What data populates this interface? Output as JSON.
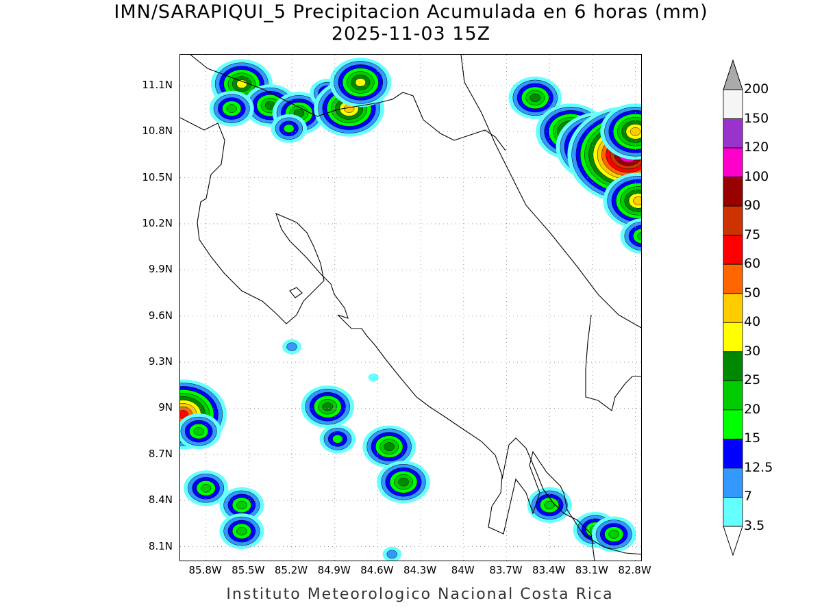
{
  "title": {
    "line1": "IMN/SARAPIQUI_5 Precipitacion Acumulada en 6 horas (mm)",
    "line2": "2025-11-03 15Z"
  },
  "footer": "Instituto Meteorologico Nacional Costa Rica",
  "map": {
    "lon_range": [
      -85.98,
      -82.75
    ],
    "lat_range": [
      8.0,
      11.3
    ],
    "grid": "dotted",
    "lat_ticks": [
      {
        "value": 11.1,
        "label": "11.1N"
      },
      {
        "value": 10.8,
        "label": "10.8N"
      },
      {
        "value": 10.5,
        "label": "10.5N"
      },
      {
        "value": 10.2,
        "label": "10.2N"
      },
      {
        "value": 9.9,
        "label": "9.9N"
      },
      {
        "value": 9.6,
        "label": "9.6N"
      },
      {
        "value": 9.3,
        "label": "9.3N"
      },
      {
        "value": 9.0,
        "label": "9N"
      },
      {
        "value": 8.7,
        "label": "8.7N"
      },
      {
        "value": 8.4,
        "label": "8.4N"
      },
      {
        "value": 8.1,
        "label": "8.1N"
      }
    ],
    "lon_ticks": [
      {
        "value": -85.8,
        "label": "85.8W"
      },
      {
        "value": -85.5,
        "label": "85.5W"
      },
      {
        "value": -85.2,
        "label": "85.2W"
      },
      {
        "value": -84.9,
        "label": "84.9W"
      },
      {
        "value": -84.6,
        "label": "84.6W"
      },
      {
        "value": -84.3,
        "label": "84.3W"
      },
      {
        "value": -84.0,
        "label": "84W"
      },
      {
        "value": -83.7,
        "label": "83.7W"
      },
      {
        "value": -83.4,
        "label": "83.4W"
      },
      {
        "value": -83.1,
        "label": "83.1W"
      },
      {
        "value": -82.8,
        "label": "82.8W"
      }
    ],
    "precip_cells": [
      {
        "lon": -85.55,
        "lat": 11.11,
        "mm": 30
      },
      {
        "lon": -85.35,
        "lat": 10.97,
        "mm": 25
      },
      {
        "lon": -85.62,
        "lat": 10.95,
        "mm": 20
      },
      {
        "lon": -85.15,
        "lat": 10.92,
        "mm": 25
      },
      {
        "lon": -84.95,
        "lat": 11.05,
        "mm": 15
      },
      {
        "lon": -84.8,
        "lat": 10.95,
        "mm": 40
      },
      {
        "lon": -84.72,
        "lat": 11.12,
        "mm": 30
      },
      {
        "lon": -85.22,
        "lat": 10.82,
        "mm": 15
      },
      {
        "lon": -83.5,
        "lat": 11.02,
        "mm": 25
      },
      {
        "lon": -83.25,
        "lat": 10.8,
        "mm": 40
      },
      {
        "lon": -83.05,
        "lat": 10.7,
        "mm": 60
      },
      {
        "lon": -82.85,
        "lat": 10.65,
        "mm": 120
      },
      {
        "lon": -82.8,
        "lat": 10.8,
        "mm": 40
      },
      {
        "lon": -82.78,
        "lat": 10.35,
        "mm": 40
      },
      {
        "lon": -82.75,
        "lat": 10.12,
        "mm": 20
      },
      {
        "lon": -85.96,
        "lat": 8.96,
        "mm": 60
      },
      {
        "lon": -85.85,
        "lat": 8.85,
        "mm": 20
      },
      {
        "lon": -84.95,
        "lat": 9.01,
        "mm": 25
      },
      {
        "lon": -84.88,
        "lat": 8.8,
        "mm": 15
      },
      {
        "lon": -84.52,
        "lat": 8.75,
        "mm": 25
      },
      {
        "lon": -84.42,
        "lat": 8.52,
        "mm": 25
      },
      {
        "lon": -85.8,
        "lat": 8.48,
        "mm": 20
      },
      {
        "lon": -85.55,
        "lat": 8.37,
        "mm": 20
      },
      {
        "lon": -85.55,
        "lat": 8.2,
        "mm": 20
      },
      {
        "lon": -83.4,
        "lat": 8.37,
        "mm": 20
      },
      {
        "lon": -83.08,
        "lat": 8.21,
        "mm": 20
      },
      {
        "lon": -82.95,
        "lat": 8.18,
        "mm": 20
      },
      {
        "lon": -84.5,
        "lat": 8.05,
        "mm": 7
      },
      {
        "lon": -85.2,
        "lat": 9.4,
        "mm": 7
      },
      {
        "lon": -84.63,
        "lat": 9.2,
        "mm": 3.5
      }
    ]
  },
  "colorbar": {
    "levels": [
      "3.5",
      "7",
      "12.5",
      "15",
      "20",
      "25",
      "30",
      "40",
      "50",
      "60",
      "75",
      "90",
      "100",
      "120",
      "150",
      "200"
    ],
    "colors": [
      "#ffffff",
      "#66ffff",
      "#3399ff",
      "#0000ff",
      "#00ff00",
      "#00cc00",
      "#008800",
      "#ffff00",
      "#ffcc00",
      "#ff6600",
      "#ff0000",
      "#cc3300",
      "#990000",
      "#ff00cc",
      "#9933cc",
      "#f5f5f5",
      "#aaaaaa"
    ]
  }
}
